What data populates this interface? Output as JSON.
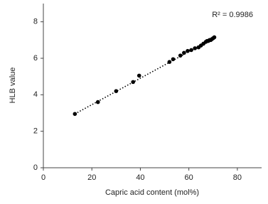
{
  "chart_data": {
    "type": "scatter",
    "x_label": "Capric acid content (mol%)",
    "y_label": "HLB value",
    "annotation": "R² = 0.9986",
    "x": [
      13,
      22.5,
      30,
      37,
      39.5,
      52,
      53.5,
      56.5,
      58,
      59.5,
      61,
      62.5,
      64,
      65,
      66,
      67,
      67.5,
      68,
      68.5,
      69,
      69.5,
      70,
      70.5
    ],
    "values": [
      2.95,
      3.6,
      4.2,
      4.7,
      5.05,
      5.8,
      5.95,
      6.15,
      6.3,
      6.4,
      6.45,
      6.55,
      6.6,
      6.7,
      6.8,
      6.9,
      6.95,
      6.95,
      7.0,
      7.0,
      7.05,
      7.1,
      7.15
    ],
    "color": "#000000",
    "trendline": {
      "x": [
        13,
        70.5
      ],
      "values": [
        2.95,
        7.12
      ]
    },
    "xlim": [
      0,
      90
    ],
    "xticks": [
      0,
      20,
      40,
      60,
      80
    ],
    "ylim": [
      0,
      9
    ],
    "yticks": [
      0,
      2,
      4,
      6,
      8
    ],
    "grid": false
  }
}
